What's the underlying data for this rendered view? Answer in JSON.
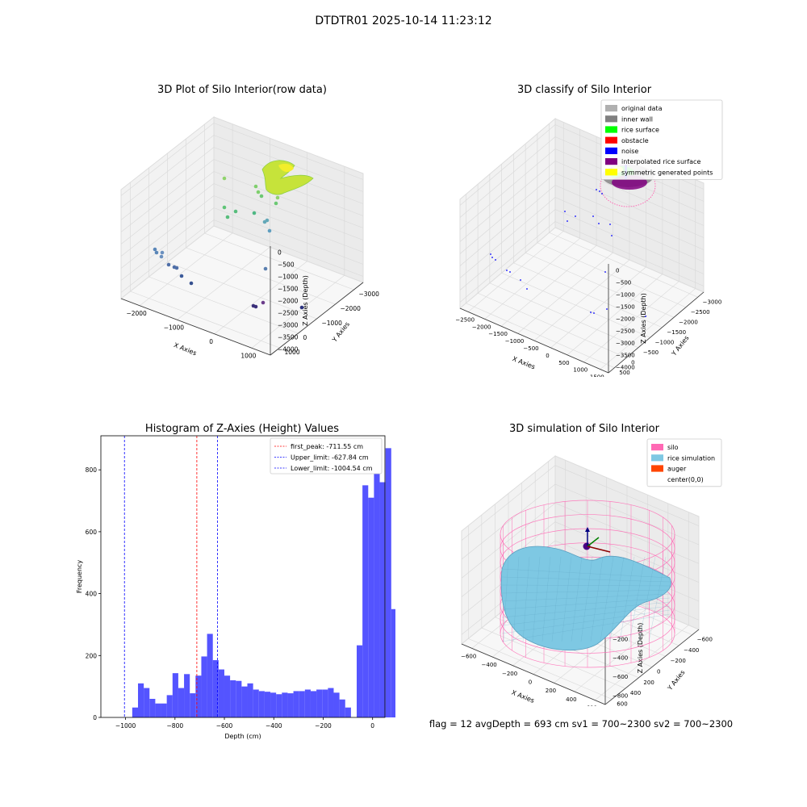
{
  "suptitle": "DTDTR01 2025-10-14 11:23:12",
  "status_text": "flag = 12  avgDepth = 693 cm  sv1 = 700~2300  sv2 = 700~2300",
  "colors": {
    "original": "#b0b0b0",
    "inner_wall": "#808080",
    "rice_surface": "#00ff00",
    "obstacle": "#ff0000",
    "noise": "#0000ff",
    "interpolated": "#800080",
    "symmetric": "#ffff00",
    "silo": "#ff69b4",
    "rice_sim": "#7ec8e3",
    "auger": "#ff4500",
    "hist_bar": "#4b4bff",
    "peak_line": "#ff0000",
    "limit_line": "#0000ff"
  },
  "chart_data": [
    {
      "type": "scatter",
      "title": "3D Plot of Silo Interior(row data)",
      "xlabel": "X Axies",
      "ylabel": "Y Axies",
      "zlabel": "Z Axies (Depth)",
      "x_ticks": [
        "−2000",
        "−1000",
        "0",
        "1000"
      ],
      "y_ticks": [
        "1000",
        "0",
        "−1000",
        "−2000",
        "−3000"
      ],
      "z_ticks": [
        "0",
        "−500",
        "−1000",
        "−1500",
        "−2000",
        "−2500",
        "−3000",
        "−3500",
        "−4000"
      ]
    },
    {
      "type": "scatter",
      "title": "3D classify of Silo Interior",
      "xlabel": "X Axies",
      "ylabel": "Y Axies",
      "zlabel": "Z Axies (Depth)",
      "x_ticks": [
        "−2500",
        "−2000",
        "−1500",
        "−1000",
        "−500",
        "0",
        "500",
        "1000",
        "1500"
      ],
      "y_ticks": [
        "500",
        "0",
        "−500",
        "−1000",
        "−1500",
        "−2000",
        "−2500",
        "−3000"
      ],
      "z_ticks": [
        "0",
        "−500",
        "−1000",
        "−1500",
        "−2000",
        "−2500",
        "−3000",
        "−3500",
        "−4000"
      ],
      "legend": [
        "original data",
        "inner wall",
        "rice surface",
        "obstacle",
        "noise",
        "interpolated rice surface",
        "symmetric generated points"
      ],
      "legend_position": "top-right"
    },
    {
      "type": "bar",
      "title": "Histogram of Z-Axies (Height) Values",
      "xlabel": "Depth (cm)",
      "ylabel": "Frequency",
      "xlim": [
        -1100,
        50
      ],
      "ylim": [
        0,
        910
      ],
      "x_ticks": [
        -1000,
        -800,
        -600,
        -400,
        -200,
        0
      ],
      "x_tick_labels": [
        "−1000",
        "−800",
        "−600",
        "−400",
        "−200",
        "0"
      ],
      "y_ticks": [
        0,
        200,
        400,
        600,
        800
      ],
      "y_tick_labels": [
        "0",
        "200",
        "400",
        "600",
        "800"
      ],
      "bin_start": -973,
      "bin_width": 23.3,
      "values": [
        32,
        110,
        95,
        60,
        45,
        45,
        72,
        143,
        95,
        140,
        78,
        135,
        197,
        270,
        185,
        155,
        135,
        120,
        118,
        100,
        110,
        90,
        85,
        83,
        80,
        75,
        80,
        78,
        85,
        85,
        90,
        85,
        90,
        90,
        95,
        80,
        58,
        32,
        0,
        233,
        750,
        710,
        870,
        760,
        870,
        350,
        95
      ],
      "vlines": [
        {
          "label": "first_peak: -711.55 cm",
          "value": -711.55,
          "color": "#ff0000"
        },
        {
          "label": "Upper_limit: -627.84 cm",
          "value": -627.84,
          "color": "#0000ff"
        },
        {
          "label": "Lower_limit: -1004.54 cm",
          "value": -1004.54,
          "color": "#0000ff"
        }
      ],
      "legend_position": "top-right"
    },
    {
      "type": "surface",
      "title": "3D simulation of Silo Interior",
      "xlabel": "X Axies",
      "ylabel": "Y Axies",
      "zlabel": "Z Axies (Depth)",
      "x_ticks": [
        "−600",
        "−400",
        "−200",
        "0",
        "200",
        "400",
        "600"
      ],
      "y_ticks": [
        "600",
        "400",
        "200",
        "0",
        "−200",
        "−400",
        "−600"
      ],
      "z_ticks": [
        "200",
        "0",
        "−200",
        "−400",
        "−600",
        "−800"
      ],
      "legend": [
        "silo",
        "rice simulation",
        "auger",
        "center(0,0)"
      ],
      "legend_position": "top-right"
    }
  ]
}
